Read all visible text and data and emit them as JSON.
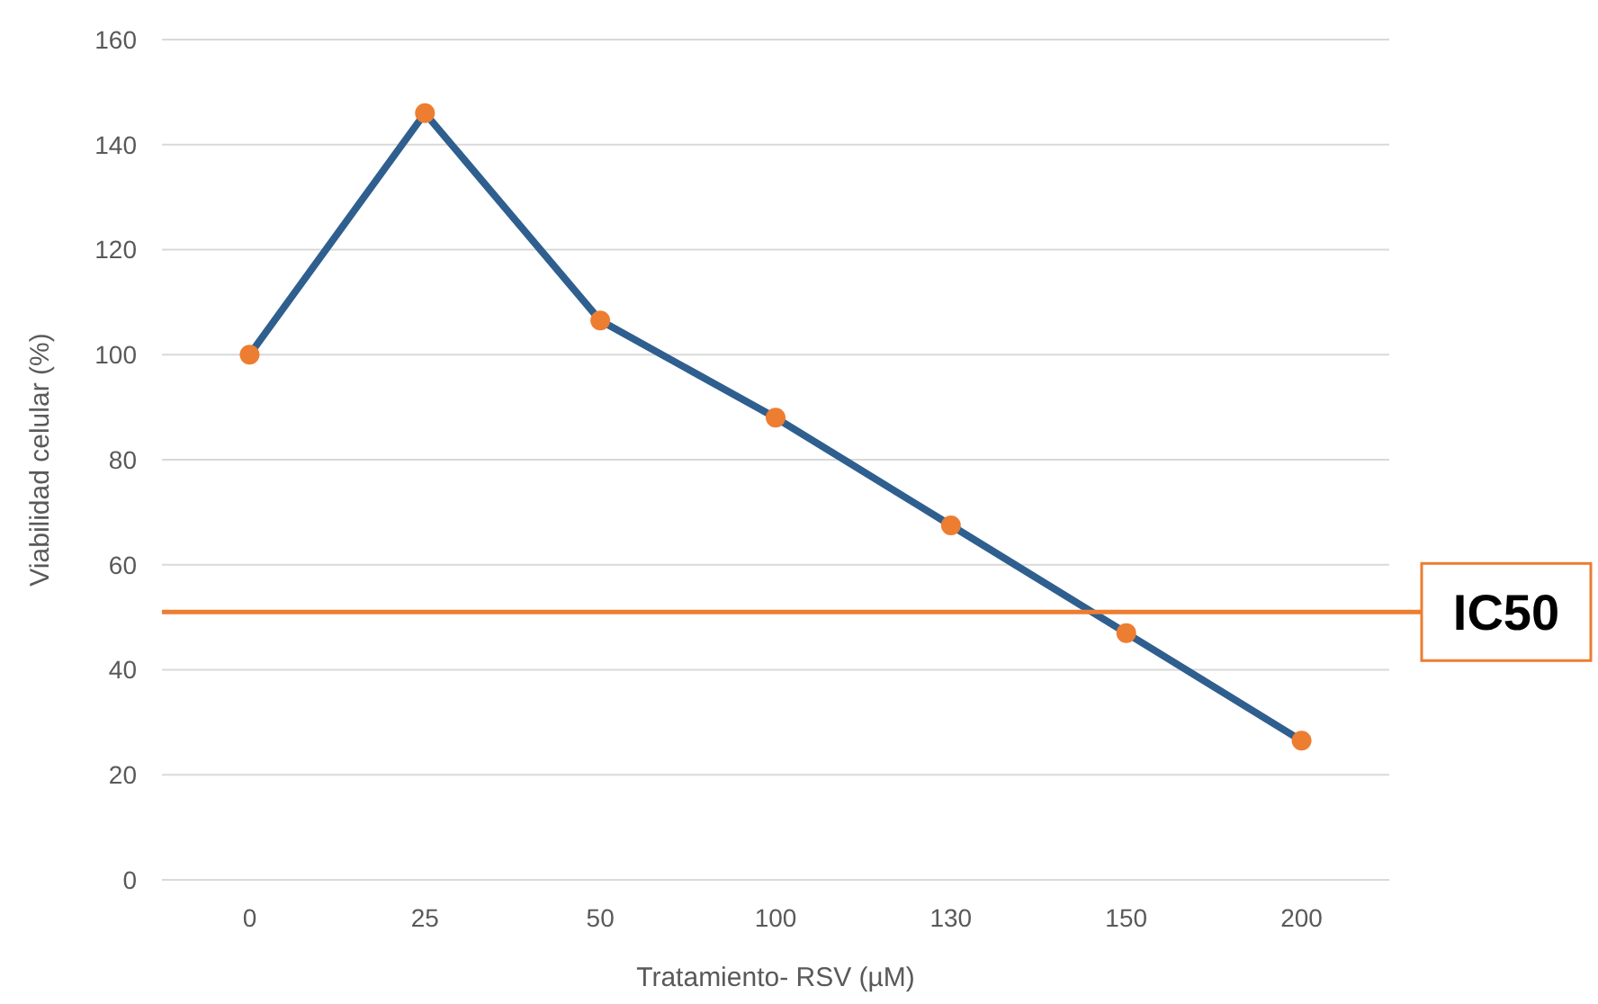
{
  "chart_data": {
    "type": "line",
    "xlabel": "Tratamiento- RSV (µM)",
    "ylabel": "Viabilidad celular (%)",
    "categories": [
      "0",
      "25",
      "50",
      "100",
      "130",
      "150",
      "200"
    ],
    "series": [
      {
        "color": "#2f5f8f",
        "values": [
          100,
          146,
          106.5,
          88,
          67.5,
          47,
          26.5
        ],
        "marker": "none"
      },
      {
        "type": "scatter",
        "color": "#ed7d31",
        "values": [
          100,
          146,
          106.5,
          88,
          67.5,
          47,
          26.5
        ],
        "marker": "circle"
      }
    ],
    "ylim": [
      0,
      160
    ],
    "yticks": [
      0,
      20,
      40,
      60,
      80,
      100,
      120,
      140,
      160
    ],
    "grid": "y",
    "line_style": "solid",
    "ref_lines": [
      {
        "axis": "y",
        "value": 51,
        "label": "IC50",
        "color": "#ed7d31"
      }
    ]
  }
}
